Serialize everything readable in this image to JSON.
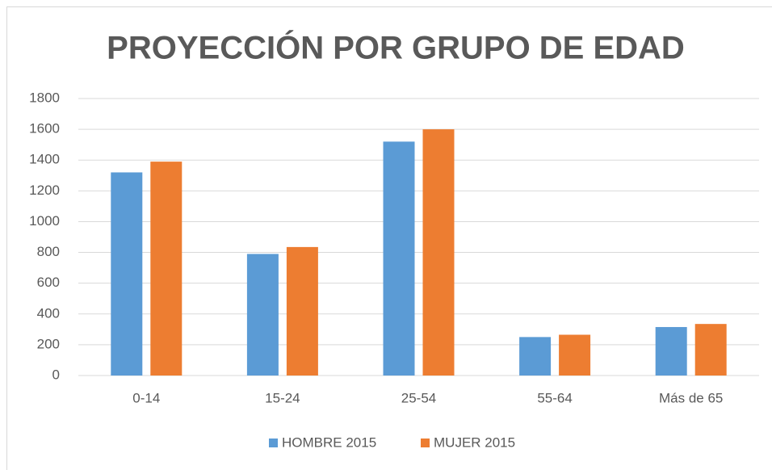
{
  "chart_data": {
    "type": "bar",
    "title": "PROYECCIÓN POR GRUPO DE EDAD",
    "categories": [
      "0-14",
      "15-24",
      "25-54",
      "55-64",
      "Más de 65"
    ],
    "series": [
      {
        "name": "HOMBRE 2015",
        "color": "#5b9bd5",
        "values": [
          1320,
          790,
          1520,
          250,
          315
        ]
      },
      {
        "name": "MUJER 2015",
        "color": "#ed7d31",
        "values": [
          1390,
          835,
          1600,
          265,
          335
        ]
      }
    ],
    "ylim": [
      0,
      1800
    ],
    "yticks": [
      0,
      200,
      400,
      600,
      800,
      1000,
      1200,
      1400,
      1600,
      1800
    ],
    "grid": true,
    "legend": "bottom"
  }
}
